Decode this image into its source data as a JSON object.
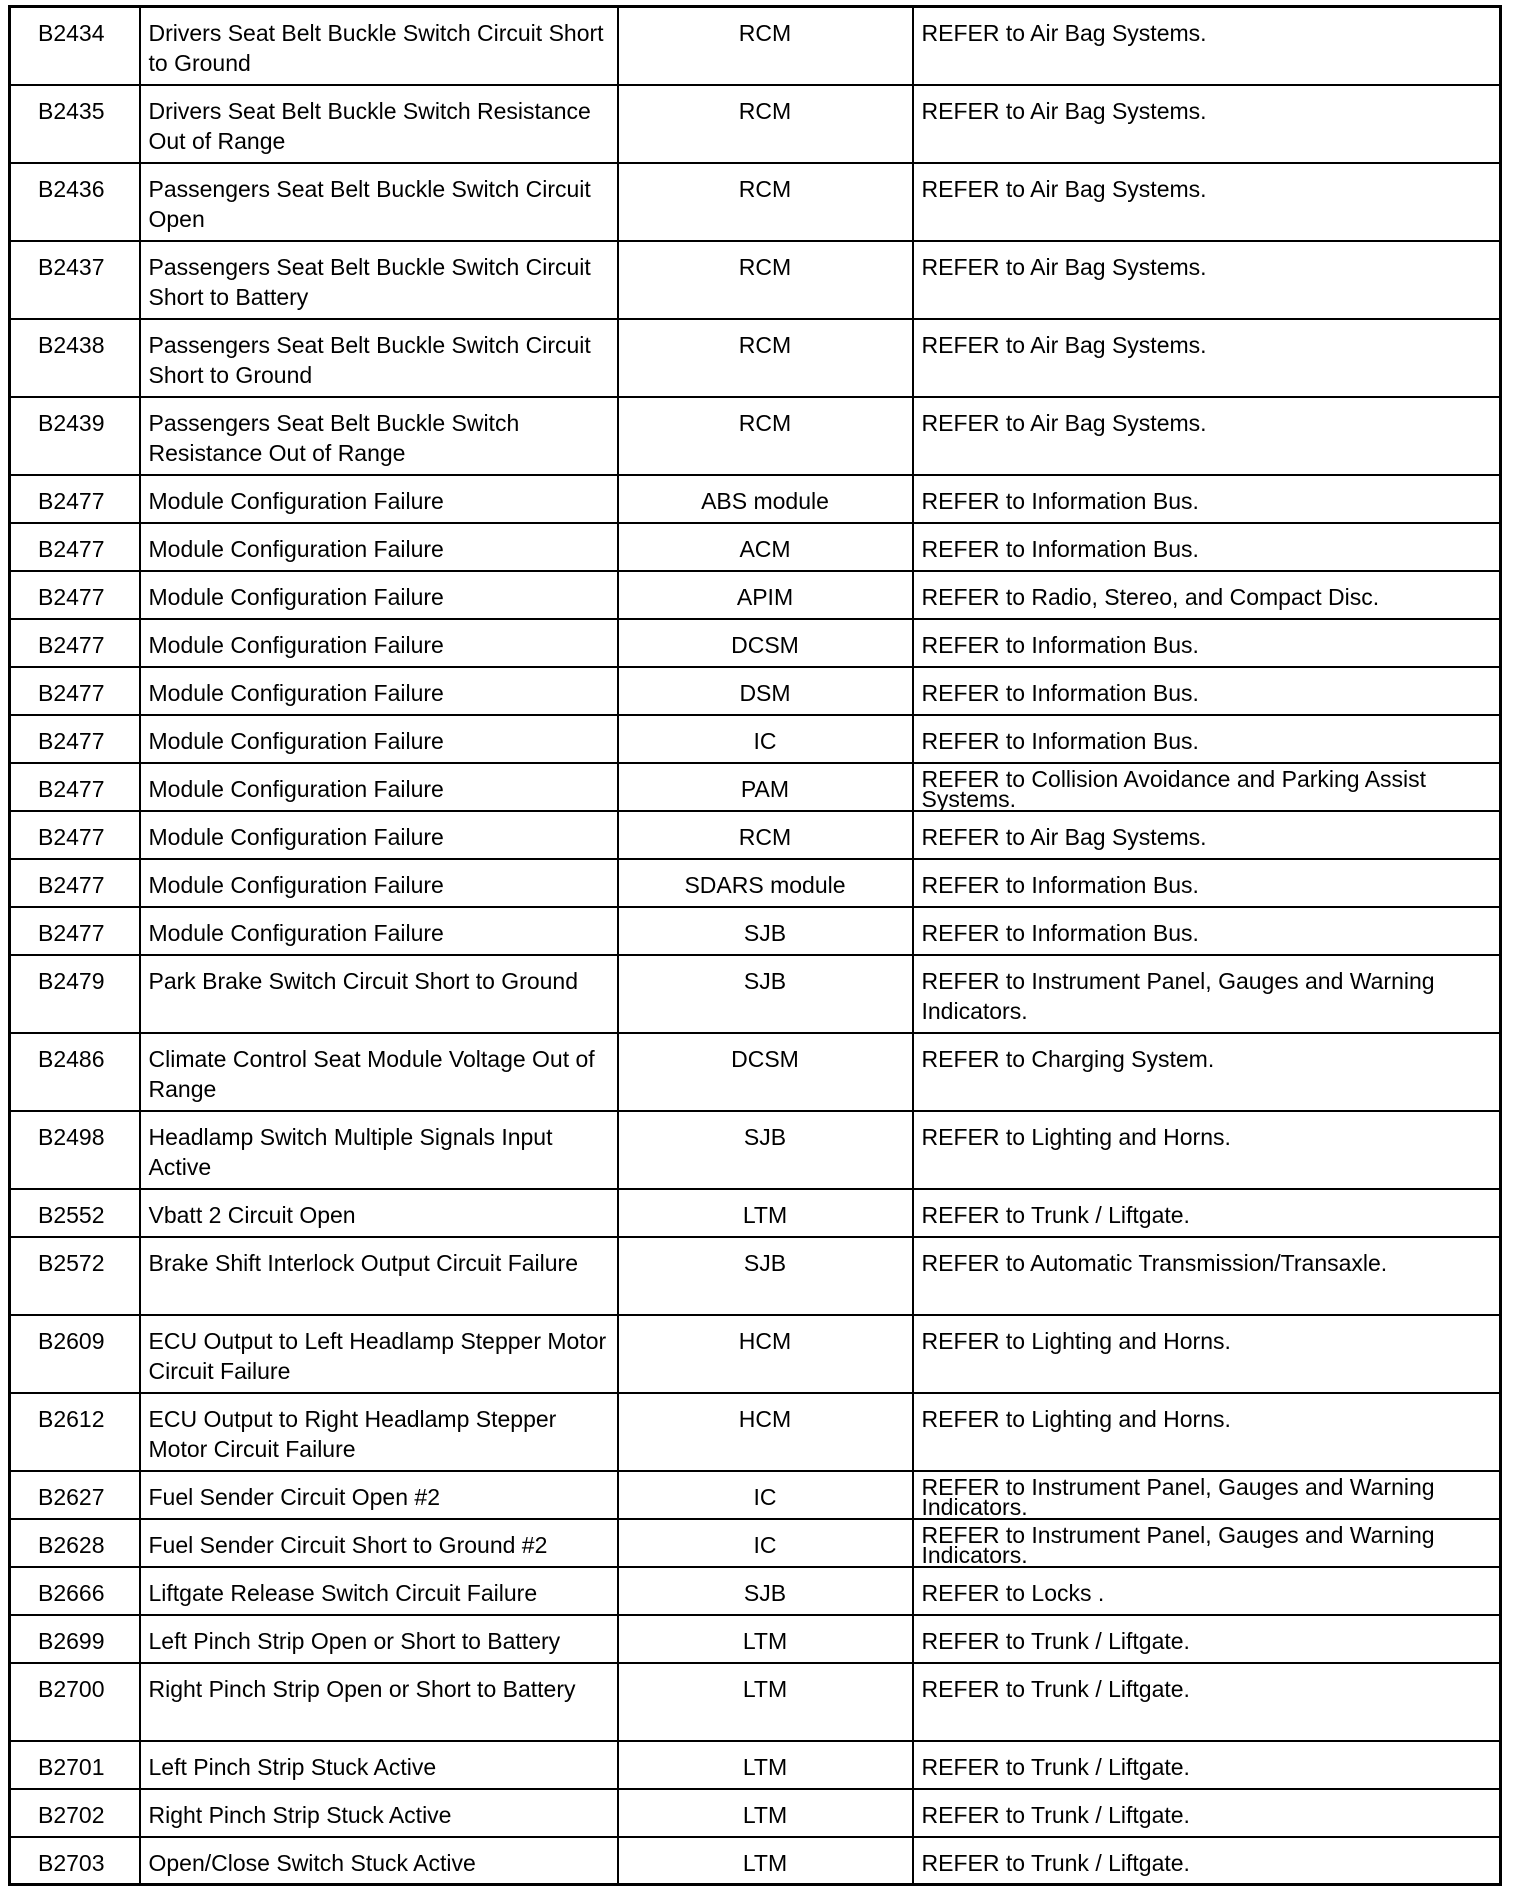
{
  "rows": [
    {
      "code": "B2434",
      "description": "Drivers Seat Belt Buckle Switch Circuit Short to Ground",
      "module": "RCM",
      "action": "REFER to Air Bag Systems.",
      "lines": 2
    },
    {
      "code": "B2435",
      "description": "Drivers Seat Belt Buckle Switch Resistance Out of Range",
      "module": "RCM",
      "action": "REFER to Air Bag Systems.",
      "lines": 2
    },
    {
      "code": "B2436",
      "description": "Passengers Seat Belt Buckle Switch Circuit Open",
      "module": "RCM",
      "action": "REFER to Air Bag Systems.",
      "lines": 2
    },
    {
      "code": "B2437",
      "description": "Passengers Seat Belt Buckle Switch Circuit Short to Battery",
      "module": "RCM",
      "action": "REFER to Air Bag Systems.",
      "lines": 2
    },
    {
      "code": "B2438",
      "description": "Passengers Seat Belt Buckle Switch Circuit Short to Ground",
      "module": "RCM",
      "action": "REFER to Air Bag Systems.",
      "lines": 2
    },
    {
      "code": "B2439",
      "description": "Passengers Seat Belt Buckle Switch Resistance Out of Range",
      "module": "RCM",
      "action": "REFER to Air Bag Systems.",
      "lines": 2
    },
    {
      "code": "B2477",
      "description": "Module Configuration Failure",
      "module": "ABS module",
      "action": "REFER to Information Bus.",
      "lines": 1
    },
    {
      "code": "B2477",
      "description": "Module Configuration Failure",
      "module": "ACM",
      "action": "REFER to Information Bus.",
      "lines": 1
    },
    {
      "code": "B2477",
      "description": "Module Configuration Failure",
      "module": "APIM",
      "action": "REFER to Radio, Stereo, and Compact Disc.",
      "lines": 1
    },
    {
      "code": "B2477",
      "description": "Module Configuration Failure",
      "module": "DCSM",
      "action": "REFER to Information Bus.",
      "lines": 1
    },
    {
      "code": "B2477",
      "description": "Module Configuration Failure",
      "module": "DSM",
      "action": "REFER to Information Bus.",
      "lines": 1
    },
    {
      "code": "B2477",
      "description": "Module Configuration Failure",
      "module": "IC",
      "action": "REFER to Information Bus.",
      "lines": 1
    },
    {
      "code": "B2477",
      "description": "Module Configuration Failure",
      "module": "PAM",
      "action": "REFER to Collision Avoidance and Parking Assist Systems.",
      "lines": 1,
      "tight": true
    },
    {
      "code": "B2477",
      "description": "Module Configuration Failure",
      "module": "RCM",
      "action": "REFER to Air Bag Systems.",
      "lines": 1
    },
    {
      "code": "B2477",
      "description": "Module Configuration Failure",
      "module": "SDARS module",
      "action": "REFER to Information Bus.",
      "lines": 1
    },
    {
      "code": "B2477",
      "description": "Module Configuration Failure",
      "module": "SJB",
      "action": "REFER to Information Bus.",
      "lines": 1
    },
    {
      "code": "B2479",
      "description": "Park Brake Switch Circuit Short to Ground",
      "module": "SJB",
      "action": "REFER to Instrument Panel, Gauges and Warning Indicators.",
      "lines": 2
    },
    {
      "code": "B2486",
      "description": "Climate Control Seat Module Voltage Out of Range",
      "module": "DCSM",
      "action": "REFER to Charging System.",
      "lines": 2
    },
    {
      "code": "B2498",
      "description": "Headlamp Switch Multiple Signals Input Active",
      "module": "SJB",
      "action": "REFER to Lighting and Horns.",
      "lines": 2
    },
    {
      "code": "B2552",
      "description": "Vbatt 2 Circuit Open",
      "module": "LTM",
      "action": "REFER to Trunk / Liftgate.",
      "lines": 1
    },
    {
      "code": "B2572",
      "description": "Brake Shift Interlock Output Circuit Failure",
      "module": "SJB",
      "action": "REFER to Automatic Transmission/Transaxle.",
      "lines": 2
    },
    {
      "code": "B2609",
      "description": "ECU Output to Left Headlamp Stepper Motor Circuit Failure",
      "module": "HCM",
      "action": "REFER to Lighting and Horns.",
      "lines": 2
    },
    {
      "code": "B2612",
      "description": "ECU Output to Right Headlamp Stepper Motor Circuit Failure",
      "module": "HCM",
      "action": "REFER to Lighting and Horns.",
      "lines": 2
    },
    {
      "code": "B2627",
      "description": "Fuel Sender Circuit Open #2",
      "module": "IC",
      "action": "REFER to Instrument Panel, Gauges and Warning Indicators.",
      "lines": 1,
      "tight": true
    },
    {
      "code": "B2628",
      "description": "Fuel Sender Circuit Short to Ground #2",
      "module": "IC",
      "action": "REFER to Instrument Panel, Gauges and Warning Indicators.",
      "lines": 1,
      "tight": true
    },
    {
      "code": "B2666",
      "description": "Liftgate Release Switch Circuit Failure",
      "module": "SJB",
      "action": "REFER to Locks .",
      "lines": 1
    },
    {
      "code": "B2699",
      "description": "Left Pinch Strip Open or Short to Battery",
      "module": "LTM",
      "action": "REFER to Trunk / Liftgate.",
      "lines": 1
    },
    {
      "code": "B2700",
      "description": "Right Pinch Strip Open or Short to Battery",
      "module": "LTM",
      "action": "REFER to Trunk / Liftgate.",
      "lines": 2
    },
    {
      "code": "B2701",
      "description": "Left Pinch Strip Stuck Active",
      "module": "LTM",
      "action": "REFER to Trunk / Liftgate.",
      "lines": 1
    },
    {
      "code": "B2702",
      "description": "Right Pinch Strip Stuck Active",
      "module": "LTM",
      "action": "REFER to Trunk / Liftgate.",
      "lines": 1
    },
    {
      "code": "B2703",
      "description": "Open/Close Switch Stuck Active",
      "module": "LTM",
      "action": "REFER to Trunk / Liftgate.",
      "lines": 1
    }
  ]
}
